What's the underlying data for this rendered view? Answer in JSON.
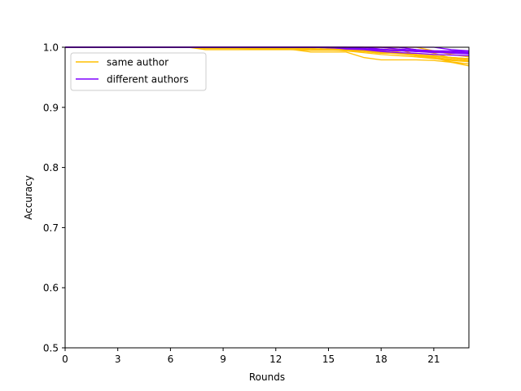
{
  "chart_data": {
    "type": "line",
    "title": "",
    "xlabel": "Rounds",
    "ylabel": "Accuracy",
    "xlim": [
      0,
      23
    ],
    "ylim": [
      0.5,
      1.0
    ],
    "xticks": [
      0,
      3,
      6,
      9,
      12,
      15,
      18,
      21
    ],
    "yticks": [
      0.5,
      0.6,
      0.7,
      0.8,
      0.9,
      1.0
    ],
    "x_tick_labels": [
      "0",
      "3",
      "6",
      "9",
      "12",
      "15",
      "18",
      "21"
    ],
    "y_tick_labels": [
      "0.5",
      "0.6",
      "0.7",
      "0.8",
      "0.9",
      "1.0"
    ],
    "grid": false,
    "legend_position": "top-left",
    "legend": [
      {
        "label": "same author",
        "color": "#ffbf00"
      },
      {
        "label": "different authors",
        "color": "#7f00ff"
      }
    ],
    "series": [
      {
        "group": 0,
        "color": "#ffbf00",
        "x": [
          0,
          7,
          8,
          9,
          10,
          11,
          12,
          13,
          14,
          15,
          16,
          17,
          18,
          19,
          20,
          21,
          22,
          23
        ],
        "y": [
          1,
          1,
          0.998,
          0.998,
          0.998,
          0.998,
          0.998,
          0.998,
          0.998,
          0.996,
          0.994,
          0.991,
          0.988,
          0.986,
          0.984,
          0.981,
          0.978,
          0.976
        ]
      },
      {
        "group": 0,
        "color": "#ffbf00",
        "x": [
          0,
          7,
          8,
          9,
          10,
          11,
          12,
          13,
          14,
          15,
          16,
          17,
          18,
          19,
          20,
          21,
          22,
          23
        ],
        "y": [
          1,
          1,
          0.996,
          0.996,
          0.996,
          0.996,
          0.996,
          0.996,
          0.992,
          0.992,
          0.992,
          0.983,
          0.979,
          0.979,
          0.979,
          0.978,
          0.975,
          0.972
        ]
      },
      {
        "group": 0,
        "color": "#ffbf00",
        "x": [
          0,
          8,
          9,
          10,
          11,
          12,
          13,
          14,
          15,
          16,
          17,
          18,
          19,
          20,
          21,
          22,
          23
        ],
        "y": [
          1,
          1,
          0.999,
          0.998,
          0.997,
          0.997,
          0.996,
          0.995,
          0.995,
          0.995,
          0.994,
          0.992,
          0.99,
          0.988,
          0.986,
          0.983,
          0.981
        ]
      },
      {
        "group": 0,
        "color": "#ffbf00",
        "x": [
          0,
          9,
          10,
          11,
          12,
          13,
          14,
          15,
          16,
          17,
          18,
          19,
          20,
          21,
          22,
          23
        ],
        "y": [
          1,
          1,
          0.998,
          0.998,
          0.998,
          0.998,
          0.996,
          0.996,
          0.995,
          0.993,
          0.99,
          0.99,
          0.987,
          0.985,
          0.982,
          0.98
        ]
      },
      {
        "group": 0,
        "color": "#ffbf00",
        "x": [
          0,
          12,
          13,
          14,
          15,
          16,
          17,
          18,
          19,
          20,
          21,
          22,
          23
        ],
        "y": [
          1,
          1,
          0.999,
          0.998,
          0.996,
          0.996,
          0.994,
          0.991,
          0.989,
          0.986,
          0.982,
          0.979,
          0.976
        ]
      },
      {
        "group": 0,
        "color": "#ffbf00",
        "x": [
          0,
          14,
          15,
          16,
          17,
          18,
          19,
          20,
          21,
          22,
          23
        ],
        "y": [
          1,
          1,
          0.998,
          0.997,
          0.995,
          0.993,
          0.99,
          0.988,
          0.985,
          0.983,
          0.981
        ]
      },
      {
        "group": 0,
        "color": "#ffbf00",
        "x": [
          0,
          15,
          16,
          17,
          18,
          19,
          20,
          21,
          22,
          23
        ],
        "y": [
          1,
          1,
          0.998,
          0.996,
          0.993,
          0.99,
          0.987,
          0.983,
          0.979,
          0.977
        ]
      },
      {
        "group": 0,
        "color": "#ffbf00",
        "x": [
          0,
          16,
          17,
          18,
          19,
          20,
          21,
          22,
          23
        ],
        "y": [
          1,
          1,
          0.998,
          0.994,
          0.99,
          0.986,
          0.983,
          0.98,
          0.976
        ]
      },
      {
        "group": 0,
        "color": "#ffbf00",
        "x": [
          0,
          17,
          18,
          19,
          20,
          21,
          22,
          23
        ],
        "y": [
          1,
          1,
          0.996,
          0.992,
          0.986,
          0.982,
          0.976,
          0.972
        ]
      },
      {
        "group": 0,
        "color": "#ffbf00",
        "x": [
          0,
          18,
          19,
          20,
          21,
          22,
          23
        ],
        "y": [
          1,
          1,
          0.996,
          0.988,
          0.983,
          0.975,
          0.969
        ]
      },
      {
        "group": 0,
        "color": "#ffbf00",
        "x": [
          0,
          19,
          20,
          21,
          22,
          23
        ],
        "y": [
          1,
          1,
          0.996,
          0.99,
          0.982,
          0.978
        ]
      },
      {
        "group": 0,
        "color": "#ffbf00",
        "x": [
          0,
          20,
          21,
          22,
          23
        ],
        "y": [
          1,
          1,
          0.994,
          0.988,
          0.984
        ]
      },
      {
        "group": 1,
        "color": "#7f00ff",
        "x": [
          0,
          14,
          15,
          16,
          17,
          18,
          19,
          20,
          21,
          22,
          23
        ],
        "y": [
          1,
          1,
          0.999,
          0.998,
          0.997,
          0.996,
          0.995,
          0.995,
          0.994,
          0.994,
          0.993
        ]
      },
      {
        "group": 1,
        "color": "#7f00ff",
        "x": [
          0,
          15,
          16,
          17,
          18,
          19,
          20,
          21,
          22,
          23
        ],
        "y": [
          1,
          1,
          0.998,
          0.997,
          0.995,
          0.994,
          0.993,
          0.991,
          0.991,
          0.99
        ]
      },
      {
        "group": 1,
        "color": "#7f00ff",
        "x": [
          0,
          16,
          17,
          18,
          19,
          20,
          21,
          22,
          23
        ],
        "y": [
          1,
          1,
          0.998,
          0.996,
          0.995,
          0.993,
          0.992,
          0.99,
          0.989
        ]
      },
      {
        "group": 1,
        "color": "#7f00ff",
        "x": [
          0,
          17,
          18,
          19,
          20,
          21,
          22,
          23
        ],
        "y": [
          1,
          1,
          0.997,
          0.995,
          0.994,
          0.992,
          0.991,
          0.99
        ]
      },
      {
        "group": 1,
        "color": "#7f00ff",
        "x": [
          0,
          18,
          19,
          20,
          21,
          22,
          23
        ],
        "y": [
          1,
          1,
          0.997,
          0.995,
          0.992,
          0.991,
          0.989
        ]
      },
      {
        "group": 1,
        "color": "#7f00ff",
        "x": [
          0,
          19,
          20,
          21,
          22,
          23
        ],
        "y": [
          1,
          1,
          0.996,
          0.994,
          0.993,
          0.991
        ]
      },
      {
        "group": 1,
        "color": "#7f00ff",
        "x": [
          0,
          15,
          16,
          17,
          18,
          19,
          20,
          21,
          22,
          23
        ],
        "y": [
          1,
          1,
          0.997,
          0.996,
          0.993,
          0.991,
          0.99,
          0.988,
          0.987,
          0.986
        ]
      },
      {
        "group": 1,
        "color": "#7f00ff",
        "x": [
          0,
          21,
          22,
          23
        ],
        "y": [
          1,
          1,
          0.996,
          0.994
        ]
      }
    ]
  }
}
